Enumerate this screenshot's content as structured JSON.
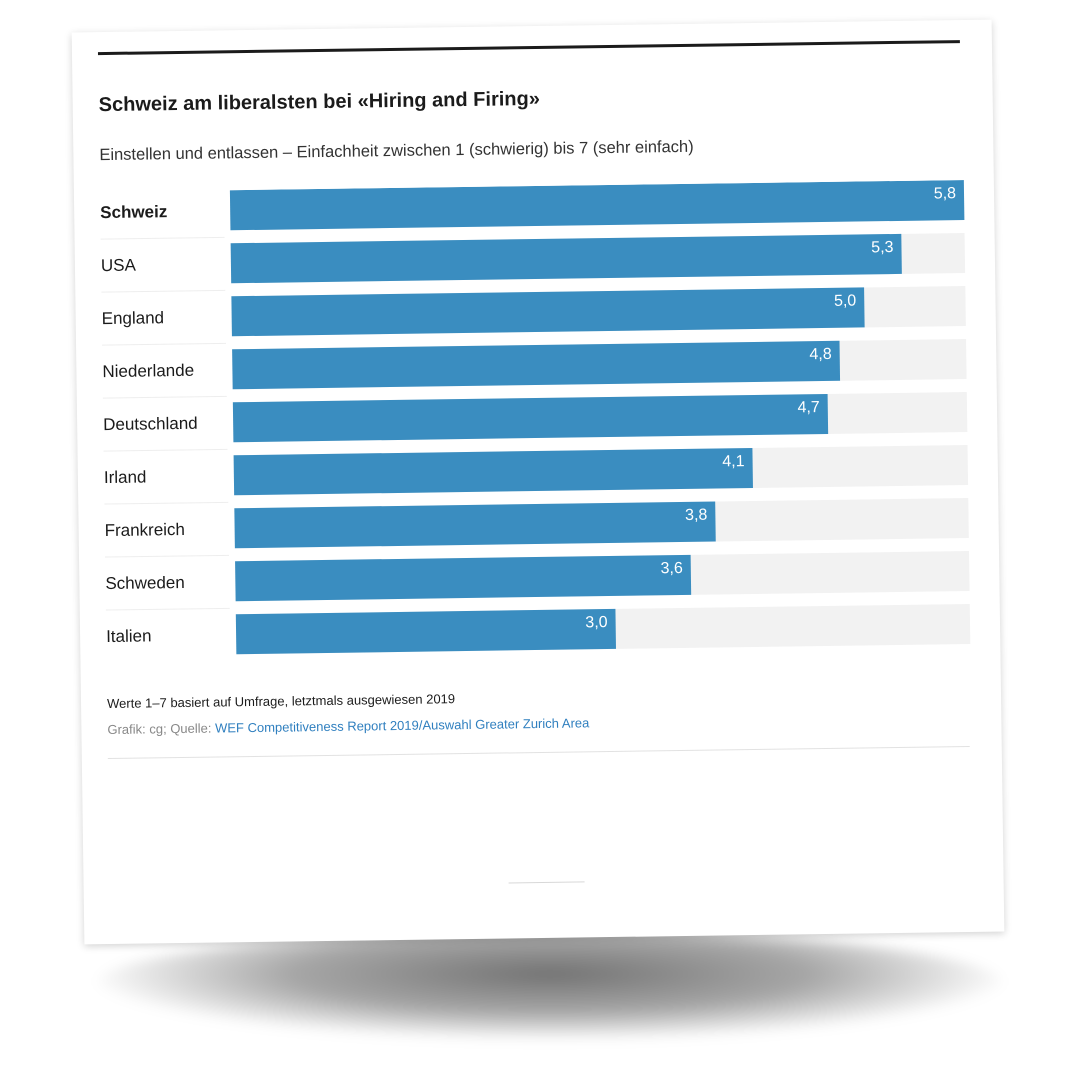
{
  "header": {
    "title": "Schweiz am liberalsten bei «Hiring and Firing»",
    "subtitle": "Einstellen und entlassen – Einfachheit zwischen 1 (schwierig) bis 7 (sehr einfach)"
  },
  "footer": {
    "note": "Werte 1–7 basiert auf Umfrage, letztmals ausgewiesen 2019",
    "source_prefix": "Grafik: cg; Quelle: ",
    "source_link": "WEF Competitiveness Report 2019/Auswahl Greater Zurich Area"
  },
  "colors": {
    "bar": "#3a8dc0",
    "track": "#f2f2f2",
    "label_on_bar": "#ffffff",
    "category_text": "#1b1b1b"
  },
  "chart_data": {
    "type": "bar",
    "orientation": "horizontal",
    "categories": [
      "Schweiz",
      "USA",
      "England",
      "Niederlande",
      "Deutschland",
      "Irland",
      "Frankreich",
      "Schweden",
      "Italien"
    ],
    "values": [
      5.8,
      5.3,
      5.0,
      4.8,
      4.7,
      4.1,
      3.8,
      3.6,
      3.0
    ],
    "value_labels": [
      "5,8",
      "5,3",
      "5,0",
      "4,8",
      "4,7",
      "4,1",
      "3,8",
      "3,6",
      "3,0"
    ],
    "highlight": "Schweiz",
    "xlim": [
      0,
      5.8
    ],
    "grid": false,
    "legend": "none"
  }
}
